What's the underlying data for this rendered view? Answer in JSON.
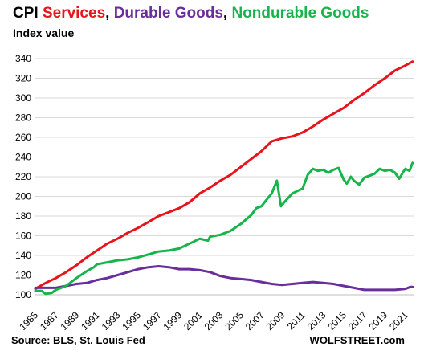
{
  "title": {
    "prefix": "CPI ",
    "parts": [
      {
        "text": "Services",
        "color": "#e8141b"
      },
      {
        "text": ", ",
        "color": "#000000"
      },
      {
        "text": "Durable Goods",
        "color": "#6a2e9c"
      },
      {
        "text": ", ",
        "color": "#000000"
      },
      {
        "text": "Nondurable Goods",
        "color": "#17b44b"
      }
    ]
  },
  "subtitle": "Index value",
  "source": "Source: BLS, St. Louis Fed",
  "brand": "WOLFSTREET.com",
  "chart_data": {
    "type": "line",
    "xlim": [
      1985,
      2021.8
    ],
    "ylim": [
      100,
      340
    ],
    "yticks": [
      100,
      120,
      140,
      160,
      180,
      200,
      220,
      240,
      260,
      280,
      300,
      320,
      340
    ],
    "xticks": [
      "1985",
      "1987",
      "1989",
      "1991",
      "1993",
      "1995",
      "1997",
      "1999",
      "2001",
      "2003",
      "2005",
      "2007",
      "2009",
      "2011",
      "2013",
      "2015",
      "2017",
      "2019",
      "2021"
    ],
    "grid": "horizontal",
    "series": [
      {
        "name": "Services",
        "color": "#e8141b",
        "points": [
          [
            1985,
            106
          ],
          [
            1986,
            112
          ],
          [
            1987,
            117
          ],
          [
            1988,
            123
          ],
          [
            1989,
            130
          ],
          [
            1990,
            138
          ],
          [
            1991,
            145
          ],
          [
            1992,
            152
          ],
          [
            1993,
            157
          ],
          [
            1994,
            163
          ],
          [
            1995,
            168
          ],
          [
            1996,
            174
          ],
          [
            1997,
            180
          ],
          [
            1998,
            184
          ],
          [
            1999,
            188
          ],
          [
            2000,
            194
          ],
          [
            2001,
            203
          ],
          [
            2002,
            209
          ],
          [
            2003,
            216
          ],
          [
            2004,
            222
          ],
          [
            2005,
            230
          ],
          [
            2006,
            238
          ],
          [
            2007,
            246
          ],
          [
            2008,
            256
          ],
          [
            2009,
            259
          ],
          [
            2010,
            261
          ],
          [
            2011,
            265
          ],
          [
            2012,
            271
          ],
          [
            2013,
            278
          ],
          [
            2014,
            284
          ],
          [
            2015,
            290
          ],
          [
            2016,
            298
          ],
          [
            2017,
            305
          ],
          [
            2018,
            313
          ],
          [
            2019,
            320
          ],
          [
            2020,
            328
          ],
          [
            2021,
            333
          ],
          [
            2021.7,
            337
          ]
        ]
      },
      {
        "name": "Durable Goods",
        "color": "#6a2e9c",
        "points": [
          [
            1985,
            107
          ],
          [
            1986,
            107
          ],
          [
            1987,
            107
          ],
          [
            1988,
            109
          ],
          [
            1989,
            111
          ],
          [
            1990,
            112
          ],
          [
            1991,
            115
          ],
          [
            1992,
            117
          ],
          [
            1993,
            120
          ],
          [
            1994,
            123
          ],
          [
            1995,
            126
          ],
          [
            1996,
            128
          ],
          [
            1997,
            129
          ],
          [
            1998,
            128
          ],
          [
            1999,
            126
          ],
          [
            2000,
            126
          ],
          [
            2001,
            125
          ],
          [
            2002,
            123
          ],
          [
            2003,
            119
          ],
          [
            2004,
            117
          ],
          [
            2005,
            116
          ],
          [
            2006,
            115
          ],
          [
            2007,
            113
          ],
          [
            2008,
            111
          ],
          [
            2009,
            110
          ],
          [
            2010,
            111
          ],
          [
            2011,
            112
          ],
          [
            2012,
            113
          ],
          [
            2013,
            112
          ],
          [
            2014,
            111
          ],
          [
            2015,
            109
          ],
          [
            2016,
            107
          ],
          [
            2017,
            105
          ],
          [
            2018,
            105
          ],
          [
            2019,
            105
          ],
          [
            2020,
            105
          ],
          [
            2021,
            106
          ],
          [
            2021.5,
            108
          ],
          [
            2021.7,
            108
          ]
        ]
      },
      {
        "name": "Nondurable Goods",
        "color": "#17b44b",
        "points": [
          [
            1985,
            104
          ],
          [
            1985.6,
            104
          ],
          [
            1986,
            101
          ],
          [
            1986.6,
            102
          ],
          [
            1987,
            105
          ],
          [
            1988,
            109
          ],
          [
            1989,
            117
          ],
          [
            1990,
            124
          ],
          [
            1990.7,
            128
          ],
          [
            1991,
            131
          ],
          [
            1992,
            133
          ],
          [
            1993,
            135
          ],
          [
            1994,
            136
          ],
          [
            1995,
            138
          ],
          [
            1996,
            141
          ],
          [
            1997,
            144
          ],
          [
            1998,
            145
          ],
          [
            1999,
            147
          ],
          [
            2000,
            152
          ],
          [
            2001,
            157
          ],
          [
            2001.8,
            155
          ],
          [
            2002,
            159
          ],
          [
            2003,
            161
          ],
          [
            2004,
            165
          ],
          [
            2005,
            172
          ],
          [
            2006,
            181
          ],
          [
            2006.5,
            188
          ],
          [
            2007,
            190
          ],
          [
            2007.6,
            198
          ],
          [
            2008,
            203
          ],
          [
            2008.5,
            216
          ],
          [
            2008.9,
            190
          ],
          [
            2009.3,
            195
          ],
          [
            2010,
            203
          ],
          [
            2011,
            208
          ],
          [
            2011.5,
            222
          ],
          [
            2012,
            228
          ],
          [
            2012.5,
            226
          ],
          [
            2013,
            227
          ],
          [
            2013.5,
            224
          ],
          [
            2014,
            227
          ],
          [
            2014.5,
            229
          ],
          [
            2015,
            217
          ],
          [
            2015.3,
            213
          ],
          [
            2015.7,
            220
          ],
          [
            2016,
            216
          ],
          [
            2016.5,
            212
          ],
          [
            2017,
            219
          ],
          [
            2018,
            223
          ],
          [
            2018.5,
            228
          ],
          [
            2019,
            226
          ],
          [
            2019.5,
            227
          ],
          [
            2020,
            224
          ],
          [
            2020.4,
            218
          ],
          [
            2020.8,
            225
          ],
          [
            2021,
            228
          ],
          [
            2021.4,
            226
          ],
          [
            2021.7,
            234
          ]
        ]
      }
    ]
  }
}
